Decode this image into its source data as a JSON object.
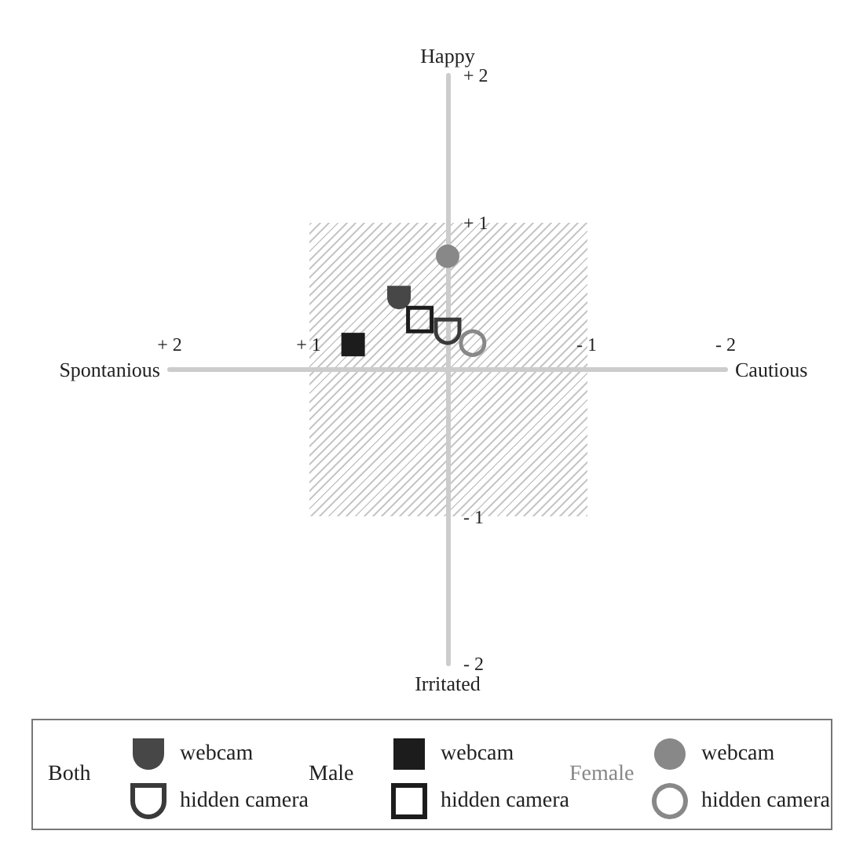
{
  "chart_data": {
    "type": "scatter",
    "xlim": [
      2,
      -2
    ],
    "ylim": [
      -2,
      2
    ],
    "xticks": [
      {
        "value": 2,
        "label": "+ 2"
      },
      {
        "value": 1,
        "label": "+ 1"
      },
      {
        "value": -1,
        "label": "- 1"
      },
      {
        "value": -2,
        "label": "- 2"
      }
    ],
    "yticks": [
      {
        "value": 2,
        "label": "+ 2"
      },
      {
        "value": 1,
        "label": "+ 1"
      },
      {
        "value": -1,
        "label": "- 1"
      },
      {
        "value": -2,
        "label": "- 2"
      }
    ],
    "annotations": [
      "Spontanious",
      "Cautious",
      "Happy",
      "Irritated",
      "Both",
      "Male",
      "Female"
    ],
    "series": [
      {
        "name": "webcam",
        "color": "#474747",
        "x": [
          0.35
        ],
        "values": [
          0.49
        ]
      },
      {
        "name": "hidden camera",
        "color": "#3a3a3a",
        "x": [
          0
        ],
        "values": [
          0.26
        ]
      },
      {
        "name": "webcam",
        "color": "#1c1c1c",
        "marker": "square",
        "x": [
          0.68
        ],
        "values": [
          0.17
        ]
      },
      {
        "name": "hidden camera",
        "color": "#1c1c1c",
        "marker": "square",
        "x": [
          0.2
        ],
        "values": [
          0.34
        ]
      },
      {
        "name": "webcam",
        "color": "#888888",
        "marker": "circle",
        "x": [
          0
        ],
        "values": [
          0.77
        ]
      },
      {
        "name": "hidden camera",
        "color": "#888888",
        "marker": "circle",
        "x": [
          -0.18
        ],
        "values": [
          0.18
        ]
      }
    ],
    "grid": false,
    "legend": "bottom"
  }
}
